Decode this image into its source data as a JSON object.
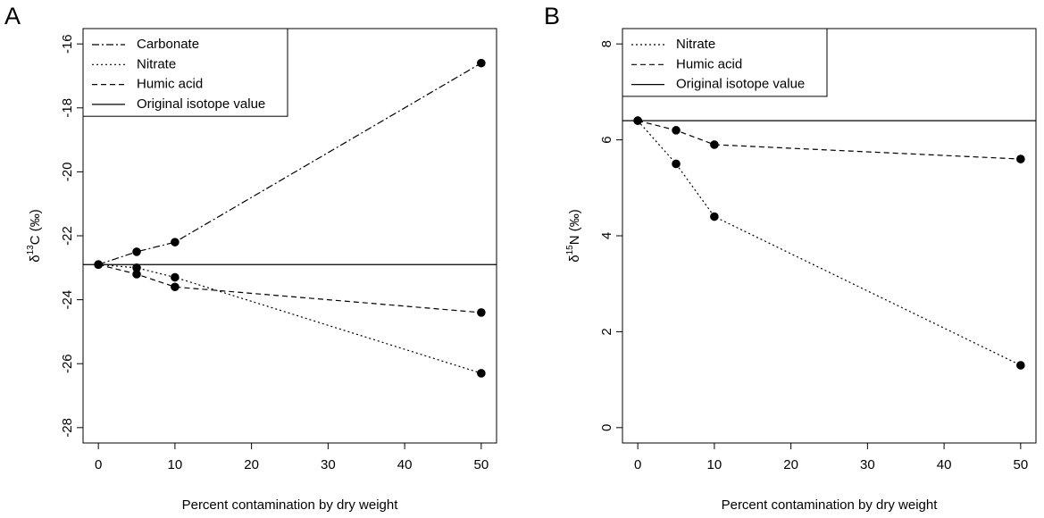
{
  "chart_data": [
    {
      "type": "line",
      "panel_label": "A",
      "x_label": "Percent contamination by dry weight",
      "y_label_parts": [
        "δ",
        "13",
        "C (‰)"
      ],
      "x": [
        0,
        5,
        10,
        50
      ],
      "series": [
        {
          "name": "Carbonate",
          "color": "#000000",
          "dash": "dotdash",
          "values": [
            -22.9,
            -22.5,
            -22.2,
            -16.6
          ]
        },
        {
          "name": "Nitrate",
          "color": "#000000",
          "dash": "dotted",
          "values": [
            -22.9,
            -23.0,
            -23.3,
            -26.3
          ]
        },
        {
          "name": "Humic acid",
          "color": "#000000",
          "dash": "dashed",
          "values": [
            -22.9,
            -23.2,
            -23.6,
            -24.4
          ]
        }
      ],
      "reference_line": {
        "name": "Original isotope value",
        "color": "#000000",
        "dash": "solid",
        "value": -22.9
      },
      "xlim": [
        -2,
        52
      ],
      "ylim": [
        -28.48,
        -15.52
      ],
      "xticks": [
        0,
        10,
        20,
        30,
        40,
        50
      ],
      "yticks": [
        -28,
        -26,
        -24,
        -22,
        -20,
        -18,
        -16
      ],
      "legend": "top-left"
    },
    {
      "type": "line",
      "panel_label": "B",
      "x_label": "Percent contamination by dry weight",
      "y_label_parts": [
        "δ",
        "15",
        "N (‰)"
      ],
      "x": [
        0,
        5,
        10,
        50
      ],
      "series": [
        {
          "name": "Nitrate",
          "color": "#000000",
          "dash": "dotted",
          "values": [
            6.4,
            5.5,
            4.4,
            1.3
          ]
        },
        {
          "name": "Humic acid",
          "color": "#000000",
          "dash": "dashed",
          "values": [
            6.4,
            6.2,
            5.9,
            5.6
          ]
        }
      ],
      "reference_line": {
        "name": "Original isotope value",
        "color": "#000000",
        "dash": "solid",
        "value": 6.4
      },
      "xlim": [
        -2,
        52
      ],
      "ylim": [
        -0.32,
        8.32
      ],
      "xticks": [
        0,
        10,
        20,
        30,
        40,
        50
      ],
      "yticks": [
        0,
        2,
        4,
        6,
        8
      ],
      "legend": "top-left"
    }
  ]
}
